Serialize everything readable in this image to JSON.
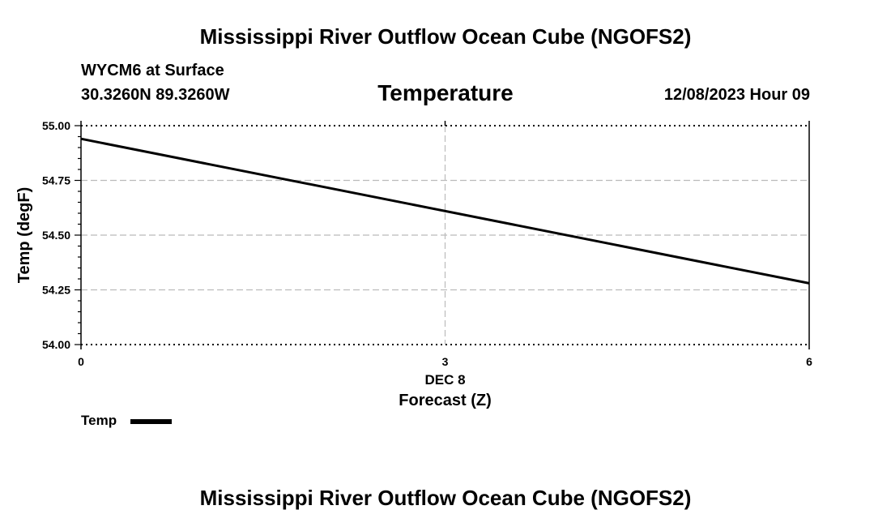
{
  "header": {
    "title": "Mississippi River Outflow Ocean Cube (NGOFS2)",
    "station": "WYCM6 at Surface",
    "coords": "30.3260N  89.3260W",
    "date_label": "12/08/2023 Hour 09",
    "footer_title": "Mississippi River Outflow Ocean Cube (NGOFS2)"
  },
  "chart_data": {
    "type": "line",
    "title": "Temperature",
    "ylabel": "Temp (degF)",
    "xlabel": "Forecast (Z)",
    "x_date_label": "DEC 8",
    "xlim": [
      0,
      6
    ],
    "ylim": [
      54.0,
      55.0
    ],
    "x_ticks": [
      0,
      3,
      6
    ],
    "x_tick_labels": [
      "0",
      "3",
      "6"
    ],
    "y_ticks": [
      54.0,
      54.25,
      54.5,
      54.75,
      55.0
    ],
    "y_tick_labels": [
      "54.00",
      "54.25",
      "54.50",
      "54.75",
      "55.00"
    ],
    "grid": true,
    "legend_position": "bottom-left",
    "series": [
      {
        "name": "Temp",
        "color": "#000000",
        "x": [
          0,
          6
        ],
        "y": [
          54.94,
          54.28
        ]
      }
    ]
  }
}
